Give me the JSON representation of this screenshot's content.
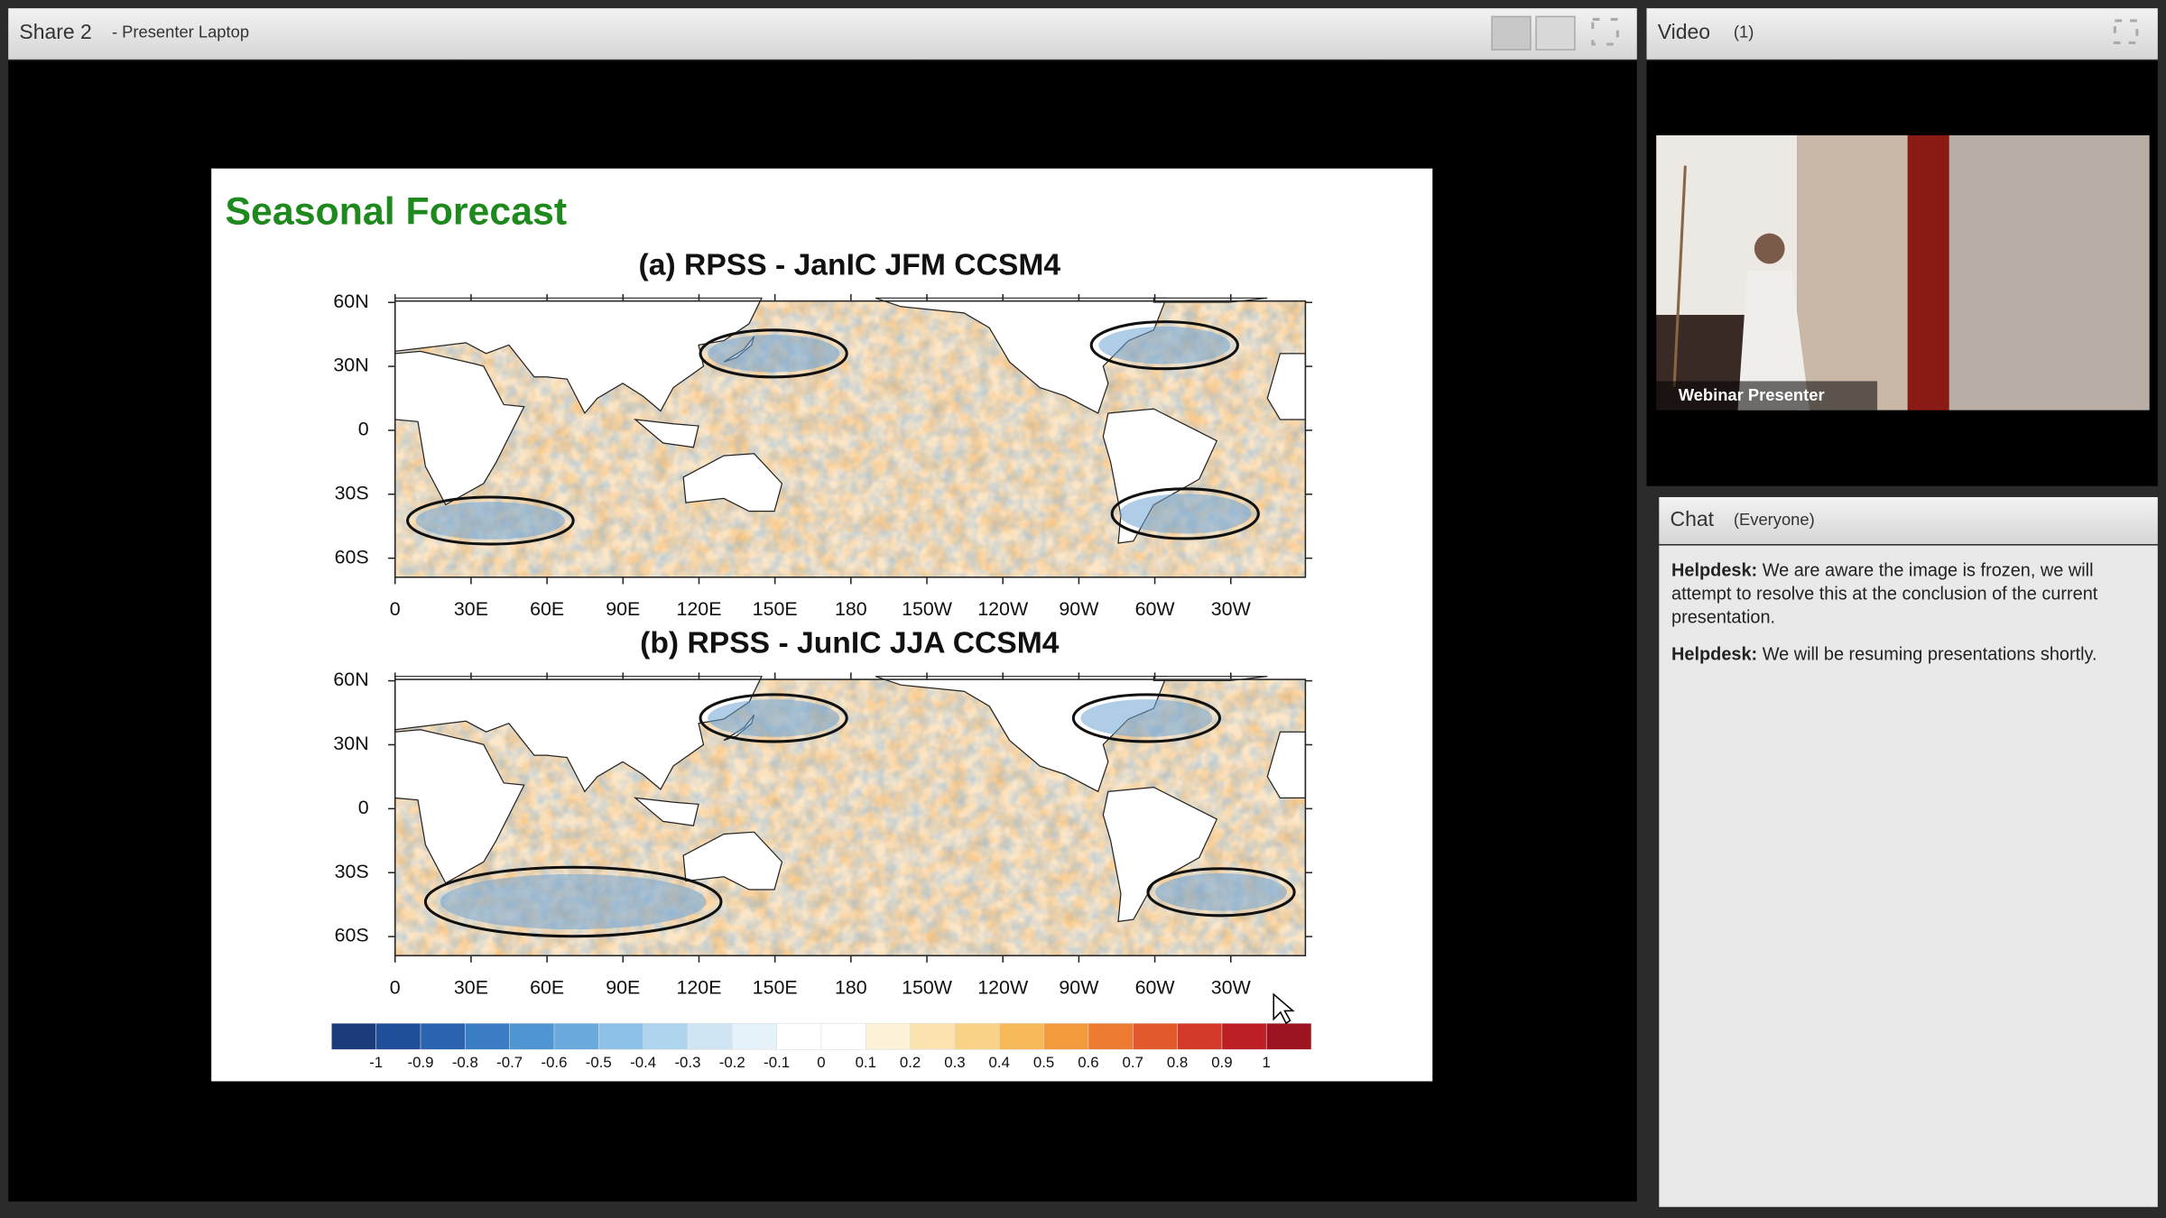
{
  "share_pod": {
    "title": "Share 2",
    "subtitle": "- Presenter Laptop"
  },
  "slide": {
    "title": "Seasonal Forecast",
    "maps": [
      {
        "title": "(a) RPSS - JanIC JFM CCSM4",
        "lat_labels": [
          "60N",
          "30N",
          "0",
          "30S",
          "60S"
        ],
        "lon_labels": [
          "0",
          "30E",
          "60E",
          "90E",
          "120E",
          "150E",
          "180",
          "150W",
          "120W",
          "90W",
          "60W",
          "30W"
        ]
      },
      {
        "title": "(b) RPSS - JunIC JJA CCSM4",
        "lat_labels": [
          "60N",
          "30N",
          "0",
          "30S",
          "60S"
        ],
        "lon_labels": [
          "0",
          "30E",
          "60E",
          "90E",
          "120E",
          "150E",
          "180",
          "150W",
          "120W",
          "90W",
          "60W",
          "30W"
        ]
      }
    ],
    "colorbar_labels": [
      "-1",
      "-0.9",
      "-0.8",
      "-0.7",
      "-0.6",
      "-0.5",
      "-0.4",
      "-0.3",
      "-0.2",
      "-0.1",
      "0",
      "0.1",
      "0.2",
      "0.3",
      "0.4",
      "0.5",
      "0.6",
      "0.7",
      "0.8",
      "0.9",
      "1"
    ]
  },
  "video_pod": {
    "title": "Video",
    "count": "(1)",
    "name_tag": "Webinar Presenter"
  },
  "chat_pod": {
    "title": "Chat",
    "scope": "(Everyone)",
    "messages": [
      {
        "sender": "Helpdesk:",
        "text": "We are aware the image is frozen, we will attempt to resolve this at the conclusion of the current presentation."
      },
      {
        "sender": "Helpdesk:",
        "text": "We will be resuming presentations shortly."
      }
    ]
  }
}
